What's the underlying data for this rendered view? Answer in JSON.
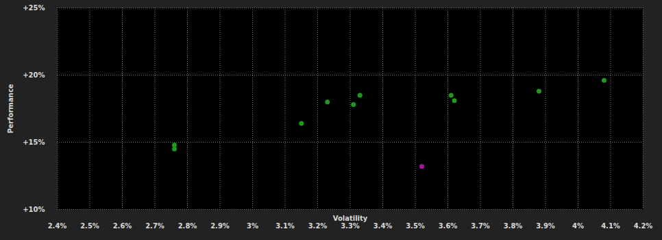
{
  "chart_data": {
    "type": "scatter",
    "xlabel": "Volatility",
    "ylabel": "Performance",
    "x": [
      2.76,
      2.76,
      3.15,
      3.23,
      3.31,
      3.33,
      3.61,
      3.62,
      3.88,
      4.08,
      3.52
    ],
    "values": [
      14.8,
      14.5,
      16.4,
      18.0,
      17.8,
      18.5,
      18.5,
      18.1,
      18.8,
      19.6,
      13.2
    ],
    "colors": [
      "#1e9a1e",
      "#1e9a1e",
      "#1e9a1e",
      "#1e9a1e",
      "#1e9a1e",
      "#1e9a1e",
      "#1e9a1e",
      "#1e9a1e",
      "#1e9a1e",
      "#1e9a1e",
      "#a0189a"
    ],
    "xlim": [
      2.4,
      4.2
    ],
    "xticks": [
      {
        "value": 2.4,
        "label": "2.4%"
      },
      {
        "value": 2.5,
        "label": "2.5%"
      },
      {
        "value": 2.6,
        "label": "2.6%"
      },
      {
        "value": 2.7,
        "label": "2.7%"
      },
      {
        "value": 2.8,
        "label": "2.8%"
      },
      {
        "value": 2.9,
        "label": "2.9%"
      },
      {
        "value": 3.0,
        "label": "3%"
      },
      {
        "value": 3.1,
        "label": "3.1%"
      },
      {
        "value": 3.2,
        "label": "3.2%"
      },
      {
        "value": 3.3,
        "label": "3.3%"
      },
      {
        "value": 3.4,
        "label": "3.4%"
      },
      {
        "value": 3.5,
        "label": "3.5%"
      },
      {
        "value": 3.6,
        "label": "3.6%"
      },
      {
        "value": 3.7,
        "label": "3.7%"
      },
      {
        "value": 3.8,
        "label": "3.8%"
      },
      {
        "value": 3.9,
        "label": "3.9%"
      },
      {
        "value": 4.0,
        "label": "4%"
      },
      {
        "value": 4.1,
        "label": "4.1%"
      },
      {
        "value": 4.2,
        "label": "4.2%"
      }
    ],
    "ylim": [
      10,
      25
    ],
    "yticks": [
      {
        "value": 10,
        "label": "+10%"
      },
      {
        "value": 15,
        "label": "+15%"
      },
      {
        "value": 20,
        "label": "+20%"
      },
      {
        "value": 25,
        "label": "+25%"
      }
    ],
    "grid": true,
    "marker": "circle"
  }
}
